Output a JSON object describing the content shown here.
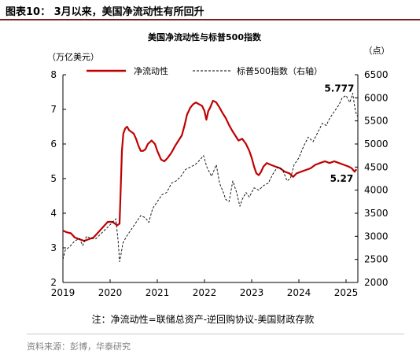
{
  "figure_caption": "图表10： 3月以来，美国净流动性有所回升",
  "note": "注：净流动性=联储总资产-逆回购协议-美国财政存款",
  "source": "资料来源：彭博，华泰研究",
  "colors": {
    "net_liquidity": "#c00000",
    "sp500": "#000000",
    "caption_rule": "#7a1f1f"
  },
  "chart_data": {
    "type": "line",
    "title": "美国净流动性与标普500指数",
    "y_left_unit": "（万亿美元）",
    "y_right_unit": "（点）",
    "y_left_lim": [
      2,
      8
    ],
    "y_left_ticks": [
      "2",
      "3",
      "4",
      "5",
      "6",
      "7",
      "8"
    ],
    "y_right_lim": [
      2000,
      6500
    ],
    "y_right_ticks": [
      "2000",
      "2500",
      "3000",
      "3500",
      "4000",
      "4500",
      "5000",
      "5500",
      "6000",
      "6500"
    ],
    "x_lim": [
      2019.0,
      2025.25
    ],
    "x_ticks": [
      "2019",
      "2020",
      "2021",
      "2022",
      "2023",
      "2024",
      "2025"
    ],
    "grid": false,
    "legend_position": "top",
    "series": [
      {
        "name": "净流动性",
        "axis": "left",
        "style": "solid",
        "x": [
          2019.0,
          2019.08,
          2019.17,
          2019.25,
          2019.35,
          2019.45,
          2019.55,
          2019.65,
          2019.75,
          2019.85,
          2019.95,
          2020.05,
          2020.15,
          2020.2,
          2020.22,
          2020.25,
          2020.28,
          2020.32,
          2020.36,
          2020.4,
          2020.45,
          2020.5,
          2020.55,
          2020.6,
          2020.65,
          2020.7,
          2020.75,
          2020.8,
          2020.88,
          2020.95,
          2021.0,
          2021.08,
          2021.15,
          2021.22,
          2021.3,
          2021.38,
          2021.45,
          2021.52,
          2021.58,
          2021.63,
          2021.7,
          2021.76,
          2021.82,
          2021.88,
          2021.95,
          2022.0,
          2022.04,
          2022.08,
          2022.12,
          2022.18,
          2022.25,
          2022.32,
          2022.38,
          2022.45,
          2022.52,
          2022.58,
          2022.65,
          2022.72,
          2022.8,
          2022.88,
          2022.95,
          2023.0,
          2023.05,
          2023.1,
          2023.15,
          2023.2,
          2023.25,
          2023.32,
          2023.4,
          2023.5,
          2023.6,
          2023.7,
          2023.8,
          2023.88,
          2023.95,
          2024.05,
          2024.15,
          2024.25,
          2024.35,
          2024.45,
          2024.55,
          2024.65,
          2024.75,
          2024.85,
          2024.95,
          2025.05,
          2025.12,
          2025.18,
          2025.22
        ],
        "values": [
          3.5,
          3.45,
          3.42,
          3.3,
          3.25,
          3.2,
          3.25,
          3.3,
          3.45,
          3.6,
          3.75,
          3.75,
          3.65,
          3.7,
          4.5,
          5.8,
          6.3,
          6.45,
          6.5,
          6.4,
          6.35,
          6.3,
          6.15,
          5.95,
          5.8,
          5.8,
          5.85,
          6.0,
          6.1,
          6.0,
          5.8,
          5.55,
          5.5,
          5.6,
          5.75,
          5.95,
          6.1,
          6.25,
          6.55,
          6.85,
          7.05,
          7.15,
          7.2,
          7.15,
          7.1,
          6.95,
          6.7,
          6.95,
          7.05,
          7.25,
          7.2,
          7.05,
          6.9,
          6.75,
          6.55,
          6.4,
          6.25,
          6.1,
          6.15,
          6.0,
          5.8,
          5.6,
          5.35,
          5.15,
          5.1,
          5.2,
          5.35,
          5.45,
          5.4,
          5.35,
          5.3,
          5.2,
          5.15,
          5.05,
          5.15,
          5.2,
          5.25,
          5.3,
          5.4,
          5.45,
          5.5,
          5.45,
          5.5,
          5.45,
          5.4,
          5.35,
          5.3,
          5.2,
          5.27
        ]
      },
      {
        "name": "标普500指数（右轴）",
        "axis": "right",
        "style": "dashed",
        "x": [
          2019.0,
          2019.05,
          2019.15,
          2019.25,
          2019.35,
          2019.42,
          2019.5,
          2019.6,
          2019.7,
          2019.8,
          2019.9,
          2020.0,
          2020.05,
          2020.12,
          2020.17,
          2020.2,
          2020.23,
          2020.27,
          2020.35,
          2020.45,
          2020.55,
          2020.65,
          2020.75,
          2020.82,
          2020.9,
          2021.0,
          2021.1,
          2021.2,
          2021.3,
          2021.4,
          2021.5,
          2021.6,
          2021.7,
          2021.8,
          2021.9,
          2021.98,
          2022.05,
          2022.15,
          2022.25,
          2022.32,
          2022.4,
          2022.45,
          2022.52,
          2022.6,
          2022.68,
          2022.75,
          2022.8,
          2022.88,
          2022.95,
          2023.05,
          2023.15,
          2023.25,
          2023.35,
          2023.45,
          2023.55,
          2023.65,
          2023.75,
          2023.82,
          2023.9,
          2024.0,
          2024.1,
          2024.2,
          2024.3,
          2024.4,
          2024.5,
          2024.58,
          2024.65,
          2024.75,
          2024.85,
          2024.92,
          2025.0,
          2025.08,
          2025.14,
          2025.2,
          2025.24
        ],
        "values": [
          2500,
          2700,
          2780,
          2900,
          2950,
          2800,
          3000,
          2950,
          2950,
          3050,
          3150,
          3250,
          3300,
          3380,
          2900,
          2450,
          2600,
          2850,
          3000,
          3150,
          3300,
          3450,
          3400,
          3300,
          3600,
          3750,
          3900,
          3950,
          4150,
          4200,
          4300,
          4450,
          4500,
          4550,
          4650,
          4750,
          4500,
          4300,
          4550,
          4150,
          3950,
          3800,
          3750,
          4200,
          3950,
          3650,
          3800,
          3950,
          3850,
          4050,
          4000,
          4100,
          4150,
          4350,
          4500,
          4450,
          4200,
          4250,
          4550,
          4700,
          4950,
          5150,
          5050,
          5250,
          5450,
          5400,
          5550,
          5700,
          5850,
          6000,
          6050,
          5900,
          6100,
          5700,
          5600
        ]
      }
    ],
    "annotations": [
      {
        "text": "5.777",
        "series": "标普500指数（右轴）"
      },
      {
        "text": "5.27",
        "series": "净流动性"
      }
    ]
  }
}
